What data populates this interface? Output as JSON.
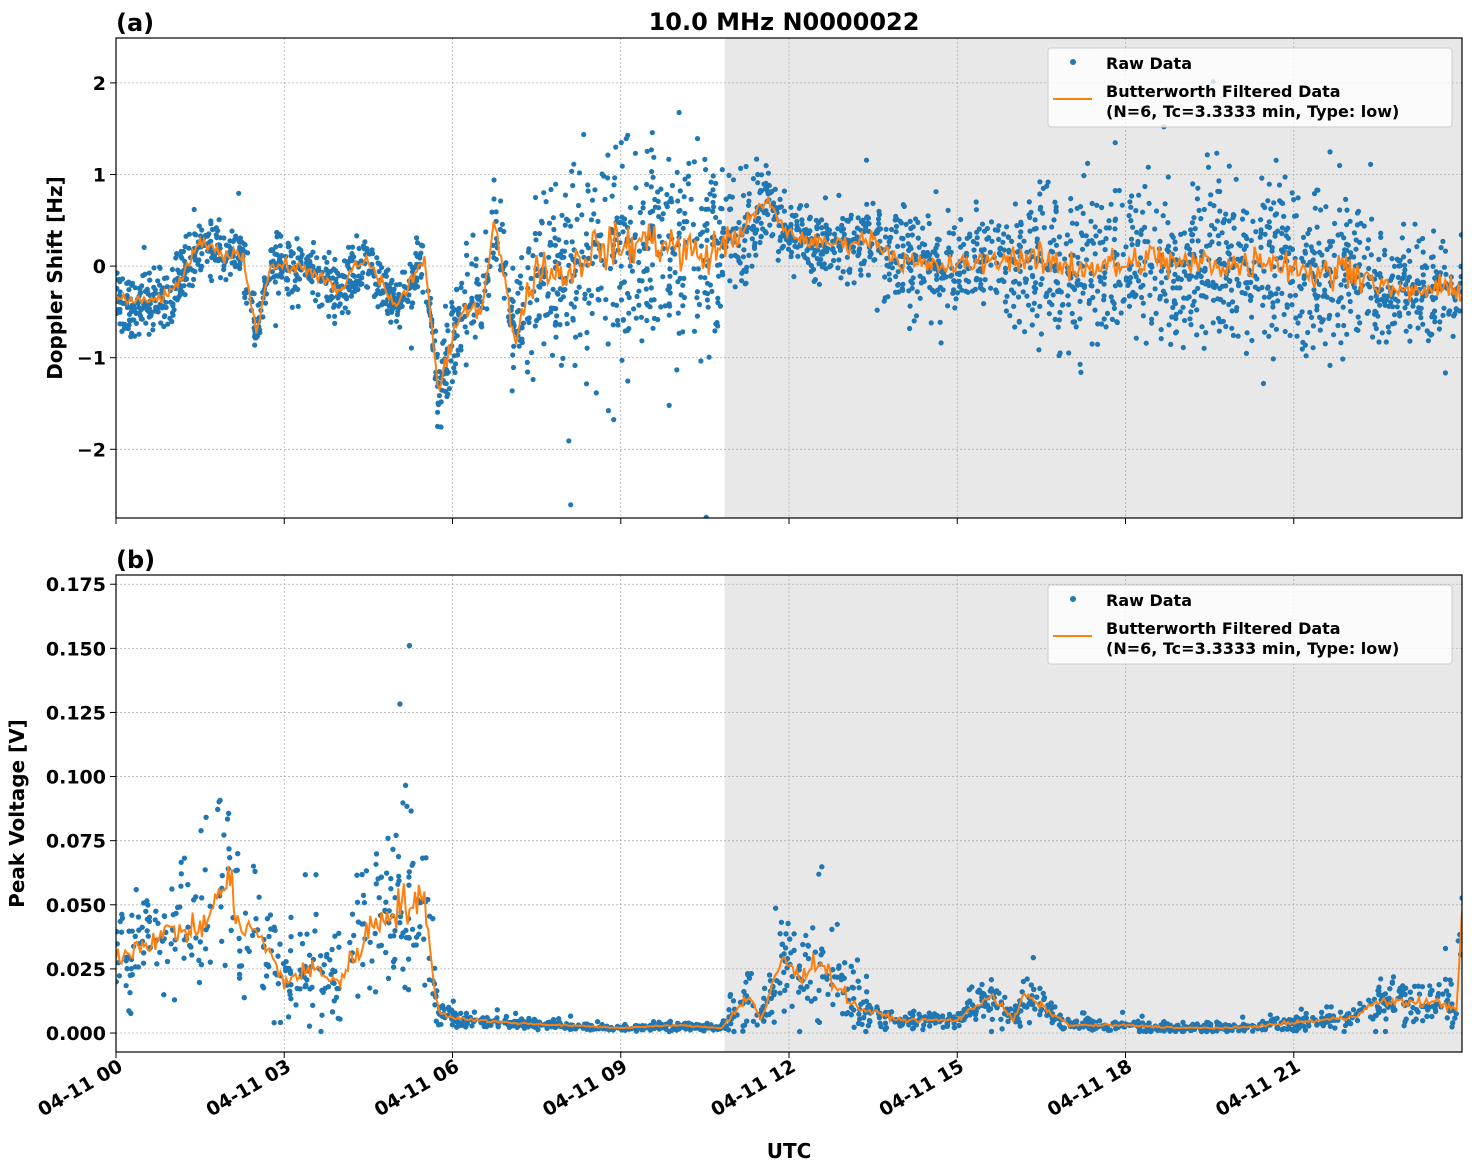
{
  "title": "10.0 MHz N0000022",
  "colors": {
    "raw": "#1f77b4",
    "filtered": "#ff7f0e",
    "shade": "#e8e8e8",
    "grid": "#b0b0b0"
  },
  "shaded_region": {
    "start": "04-11 10:51",
    "end": "04-12 00:00"
  },
  "xlabel": "UTC",
  "xticks": [
    "04-11 00",
    "04-11 03",
    "04-11 06",
    "04-11 09",
    "04-11 12",
    "04-11 15",
    "04-11 18",
    "04-11 21"
  ],
  "xlim": [
    "04-11 00:00",
    "04-12 00:00"
  ],
  "legend": {
    "raw": "Raw Data",
    "filtered_line1": "Butterworth Filtered Data",
    "filtered_line2": "(N=6, Tc=3.3333 min, Type: low)",
    "placement": "top-right"
  },
  "chart_data": [
    {
      "type": "scatter+line",
      "panel_label": "(a)",
      "ylabel": "Doppler Shift [Hz]",
      "ylim": [
        -2.75,
        2.49
      ],
      "yticks": [
        -2,
        -1,
        0,
        1,
        2
      ],
      "ytick_labels": [
        "−2",
        "−1",
        "0",
        "1",
        "2"
      ],
      "grid": true,
      "x": [
        "04-11 00:00",
        "04-11 00:30",
        "04-11 01:00",
        "04-11 01:30",
        "04-11 02:00",
        "04-11 02:15",
        "04-11 02:30",
        "04-11 02:45",
        "04-11 03:00",
        "04-11 03:30",
        "04-11 04:00",
        "04-11 04:15",
        "04-11 04:30",
        "04-11 05:00",
        "04-11 05:30",
        "04-11 05:45",
        "04-11 06:00",
        "04-11 06:15",
        "04-11 06:30",
        "04-11 06:45",
        "04-11 07:06",
        "04-11 07:30",
        "04-11 08:00",
        "04-11 08:30",
        "04-11 09:00",
        "04-11 09:30",
        "04-11 10:00",
        "04-11 10:30",
        "04-11 11:00",
        "04-11 11:36",
        "04-11 12:00",
        "04-11 12:30",
        "04-11 13:00",
        "04-11 13:30",
        "04-11 14:00",
        "04-11 14:30",
        "04-11 15:00",
        "04-11 15:30",
        "04-11 16:00",
        "04-11 16:30",
        "04-11 17:00",
        "04-11 17:30",
        "04-11 18:00",
        "04-11 18:30",
        "04-11 19:00",
        "04-11 19:30",
        "04-11 20:00",
        "04-11 20:30",
        "04-11 21:00",
        "04-11 21:30",
        "04-11 22:00",
        "04-11 22:30",
        "04-11 23:00",
        "04-11 23:30",
        "04-12 00:00"
      ],
      "series": [
        {
          "name": "Butterworth Filtered Data",
          "values": [
            -0.35,
            -0.4,
            -0.3,
            0.25,
            0.1,
            0.15,
            -0.7,
            0.0,
            0.0,
            -0.05,
            -0.3,
            0.0,
            0.05,
            -0.45,
            0.1,
            -1.4,
            -0.8,
            -0.4,
            -0.5,
            0.5,
            -0.8,
            0.0,
            -0.1,
            0.2,
            0.2,
            0.3,
            0.2,
            0.1,
            0.3,
            0.7,
            0.35,
            0.25,
            0.25,
            0.3,
            0.05,
            0.0,
            0.0,
            0.05,
            0.1,
            0.05,
            0.0,
            0.0,
            0.0,
            0.1,
            0.0,
            0.05,
            0.0,
            0.1,
            0.0,
            -0.1,
            0.0,
            -0.2,
            -0.3,
            -0.25,
            -0.25
          ]
        },
        {
          "name": "Raw Data",
          "scatter_spread": [
            0.3,
            0.3,
            0.3,
            0.3,
            0.3,
            0.3,
            0.3,
            0.3,
            0.3,
            0.3,
            0.3,
            0.3,
            0.3,
            0.3,
            0.3,
            0.4,
            0.5,
            0.5,
            0.5,
            0.5,
            0.5,
            0.9,
            0.9,
            1.0,
            1.0,
            1.0,
            1.0,
            1.0,
            0.7,
            0.4,
            0.3,
            0.35,
            0.4,
            0.4,
            0.5,
            0.5,
            0.5,
            0.5,
            0.6,
            0.8,
            0.8,
            0.8,
            0.8,
            0.8,
            0.8,
            0.8,
            0.8,
            0.8,
            0.8,
            0.8,
            0.8,
            0.5,
            0.5,
            0.5,
            0.5
          ]
        }
      ]
    },
    {
      "type": "scatter+line",
      "panel_label": "(b)",
      "ylabel": "Peak Voltage [V]",
      "ylim": [
        -0.0074,
        0.1786
      ],
      "yticks": [
        0,
        0.025,
        0.05,
        0.075,
        0.1,
        0.125,
        0.15,
        0.175
      ],
      "ytick_labels": [
        "0.000",
        "0.025",
        "0.050",
        "0.075",
        "0.100",
        "0.125",
        "0.150",
        "0.175"
      ],
      "grid": true,
      "x": [
        "04-11 00:00",
        "04-11 00:30",
        "04-11 01:00",
        "04-11 01:30",
        "04-11 02:00",
        "04-11 02:15",
        "04-11 02:30",
        "04-11 03:00",
        "04-11 03:30",
        "04-11 04:00",
        "04-11 04:30",
        "04-11 05:00",
        "04-11 05:30",
        "04-11 05:45",
        "04-11 06:00",
        "04-11 07:00",
        "04-11 08:00",
        "04-11 09:00",
        "04-11 10:00",
        "04-11 10:48",
        "04-11 11:18",
        "04-11 11:30",
        "04-11 11:54",
        "04-11 12:12",
        "04-11 12:30",
        "04-11 12:48",
        "04-11 13:12",
        "04-11 14:00",
        "04-11 15:00",
        "04-11 15:36",
        "04-11 16:00",
        "04-11 16:12",
        "04-11 17:00",
        "04-11 18:00",
        "04-11 19:00",
        "04-11 20:00",
        "04-11 21:00",
        "04-11 22:00",
        "04-11 22:30",
        "04-11 23:00",
        "04-11 23:30",
        "04-11 23:54",
        "04-12 00:00"
      ],
      "series": [
        {
          "name": "Butterworth Filtered Data",
          "values": [
            0.03,
            0.035,
            0.04,
            0.04,
            0.06,
            0.04,
            0.04,
            0.02,
            0.025,
            0.02,
            0.04,
            0.05,
            0.05,
            0.008,
            0.006,
            0.004,
            0.003,
            0.002,
            0.003,
            0.002,
            0.015,
            0.005,
            0.03,
            0.02,
            0.03,
            0.02,
            0.01,
            0.005,
            0.005,
            0.015,
            0.005,
            0.015,
            0.003,
            0.003,
            0.002,
            0.002,
            0.004,
            0.006,
            0.012,
            0.012,
            0.012,
            0.01,
            0.045
          ]
        },
        {
          "name": "Raw Data",
          "scatter_spread": [
            0.018,
            0.02,
            0.022,
            0.022,
            0.035,
            0.025,
            0.025,
            0.014,
            0.018,
            0.015,
            0.03,
            0.035,
            0.035,
            0.004,
            0.003,
            0.002,
            0.0015,
            0.001,
            0.0015,
            0.001,
            0.012,
            0.004,
            0.02,
            0.015,
            0.02,
            0.015,
            0.007,
            0.003,
            0.003,
            0.008,
            0.003,
            0.008,
            0.002,
            0.002,
            0.0015,
            0.0015,
            0.003,
            0.004,
            0.008,
            0.008,
            0.008,
            0.008,
            0.01
          ]
        }
      ]
    }
  ]
}
